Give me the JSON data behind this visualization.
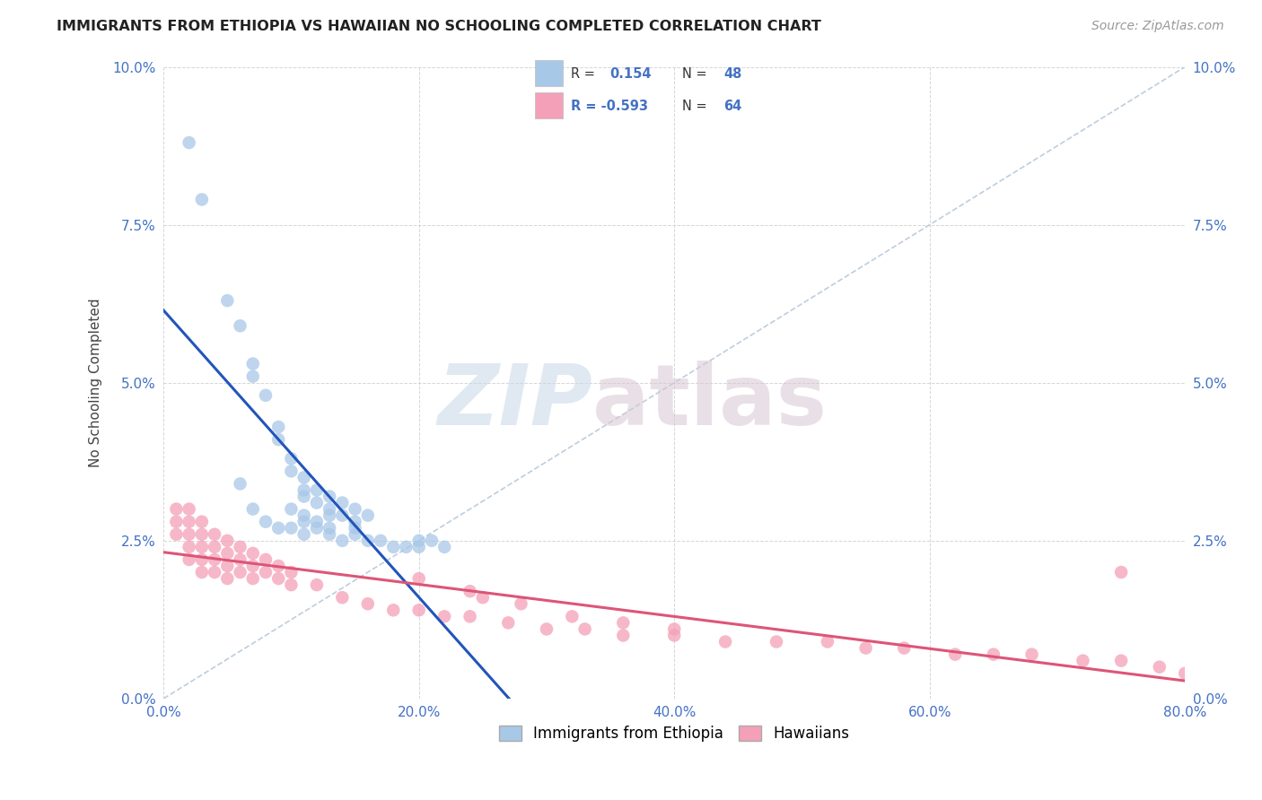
{
  "title": "IMMIGRANTS FROM ETHIOPIA VS HAWAIIAN NO SCHOOLING COMPLETED CORRELATION CHART",
  "source": "Source: ZipAtlas.com",
  "ylabel": "No Schooling Completed",
  "xlim": [
    0.0,
    0.8
  ],
  "ylim": [
    0.0,
    0.1
  ],
  "xticks": [
    0.0,
    0.2,
    0.4,
    0.6,
    0.8
  ],
  "yticks": [
    0.0,
    0.025,
    0.05,
    0.075,
    0.1
  ],
  "xticklabels": [
    "0.0%",
    "20.0%",
    "40.0%",
    "60.0%",
    "80.0%"
  ],
  "yticklabels": [
    "0.0%",
    "2.5%",
    "5.0%",
    "7.5%",
    "10.0%"
  ],
  "legend_labels": [
    "Immigrants from Ethiopia",
    "Hawaiians"
  ],
  "color_blue": "#a8c8e8",
  "color_pink": "#f4a0b8",
  "line_blue": "#2255bb",
  "line_pink": "#dd5577",
  "line_dashed_color": "#b8c8d8",
  "background": "#ffffff",
  "eth_x": [
    0.02,
    0.03,
    0.05,
    0.06,
    0.07,
    0.07,
    0.08,
    0.09,
    0.09,
    0.1,
    0.1,
    0.11,
    0.11,
    0.11,
    0.12,
    0.12,
    0.13,
    0.13,
    0.13,
    0.14,
    0.14,
    0.15,
    0.15,
    0.15,
    0.16,
    0.06,
    0.07,
    0.08,
    0.09,
    0.1,
    0.11,
    0.11,
    0.12,
    0.13,
    0.14,
    0.15,
    0.16,
    0.17,
    0.18,
    0.19,
    0.2,
    0.2,
    0.21,
    0.22,
    0.1,
    0.11,
    0.12,
    0.13
  ],
  "eth_y": [
    0.088,
    0.079,
    0.063,
    0.059,
    0.053,
    0.051,
    0.048,
    0.043,
    0.041,
    0.038,
    0.036,
    0.035,
    0.033,
    0.032,
    0.033,
    0.031,
    0.032,
    0.03,
    0.029,
    0.031,
    0.029,
    0.03,
    0.028,
    0.027,
    0.029,
    0.034,
    0.03,
    0.028,
    0.027,
    0.027,
    0.028,
    0.026,
    0.027,
    0.026,
    0.025,
    0.026,
    0.025,
    0.025,
    0.024,
    0.024,
    0.025,
    0.024,
    0.025,
    0.024,
    0.03,
    0.029,
    0.028,
    0.027
  ],
  "haw_x": [
    0.01,
    0.01,
    0.01,
    0.02,
    0.02,
    0.02,
    0.02,
    0.02,
    0.03,
    0.03,
    0.03,
    0.03,
    0.03,
    0.04,
    0.04,
    0.04,
    0.04,
    0.05,
    0.05,
    0.05,
    0.05,
    0.06,
    0.06,
    0.06,
    0.07,
    0.07,
    0.07,
    0.08,
    0.08,
    0.09,
    0.09,
    0.1,
    0.1,
    0.12,
    0.14,
    0.16,
    0.18,
    0.2,
    0.22,
    0.24,
    0.27,
    0.3,
    0.33,
    0.36,
    0.4,
    0.44,
    0.48,
    0.52,
    0.55,
    0.58,
    0.62,
    0.65,
    0.68,
    0.72,
    0.75,
    0.78,
    0.8,
    0.25,
    0.28,
    0.32,
    0.36,
    0.4,
    0.2,
    0.24,
    0.75
  ],
  "haw_y": [
    0.03,
    0.028,
    0.026,
    0.03,
    0.028,
    0.026,
    0.024,
    0.022,
    0.028,
    0.026,
    0.024,
    0.022,
    0.02,
    0.026,
    0.024,
    0.022,
    0.02,
    0.025,
    0.023,
    0.021,
    0.019,
    0.024,
    0.022,
    0.02,
    0.023,
    0.021,
    0.019,
    0.022,
    0.02,
    0.021,
    0.019,
    0.02,
    0.018,
    0.018,
    0.016,
    0.015,
    0.014,
    0.014,
    0.013,
    0.013,
    0.012,
    0.011,
    0.011,
    0.01,
    0.01,
    0.009,
    0.009,
    0.009,
    0.008,
    0.008,
    0.007,
    0.007,
    0.007,
    0.006,
    0.006,
    0.005,
    0.004,
    0.016,
    0.015,
    0.013,
    0.012,
    0.011,
    0.019,
    0.017,
    0.02
  ]
}
